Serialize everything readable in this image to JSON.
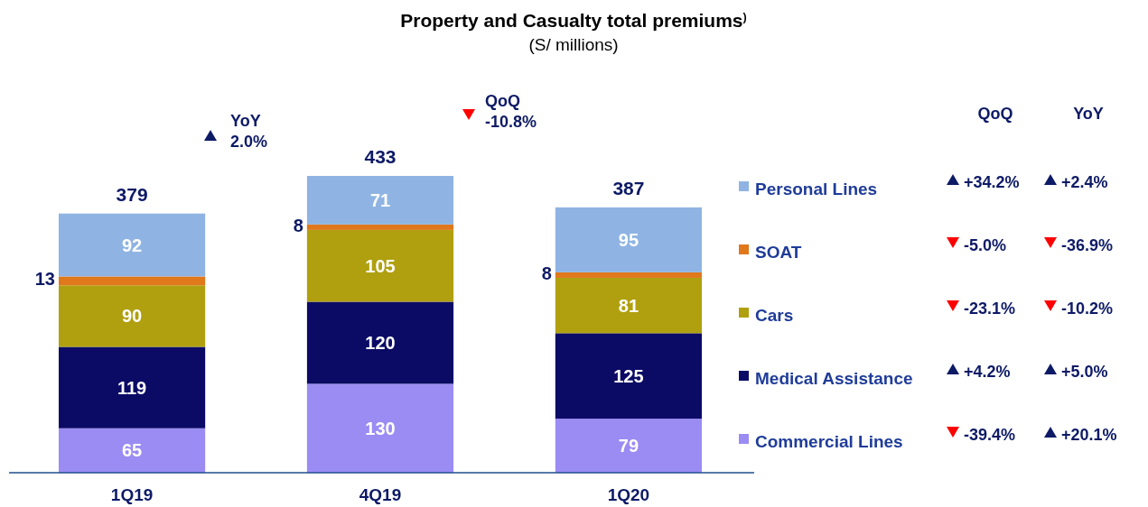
{
  "chart_data": {
    "type": "bar",
    "title": "Property and Casualty total premiums$^{)}$",
    "subtitle": "(S/ millions)",
    "categories": [
      "1Q19",
      "4Q19",
      "1Q20"
    ],
    "stacked": true,
    "data_labels": true,
    "legend": "right",
    "totals": [
      "379",
      "433",
      "387"
    ],
    "series": [
      {
        "name": "Commercial Lines",
        "color": "#9b8cf3",
        "values": [
          65,
          130,
          79
        ]
      },
      {
        "name": "Medical Assistance",
        "color": "#0b0b66",
        "values": [
          119,
          120,
          125
        ]
      },
      {
        "name": "Cars",
        "color": "#b0a010",
        "values": [
          90,
          105,
          81
        ]
      },
      {
        "name": "SOAT",
        "color": "#e0781c",
        "values": [
          13,
          8,
          8
        ]
      },
      {
        "name": "Personal Lines",
        "color": "#8fb4e3",
        "values": [
          92,
          71,
          95
        ]
      }
    ],
    "annotations": [
      "YoY 2.0%",
      "QoQ -10.8%",
      "QoQ",
      "YoY",
      "+34.2%",
      "+2.4%",
      "-5.0%",
      "-36.9%",
      "-23.1%",
      "-10.2%",
      "+4.2%",
      "+5.0%",
      "-39.4%",
      "+20.1%"
    ]
  }
}
